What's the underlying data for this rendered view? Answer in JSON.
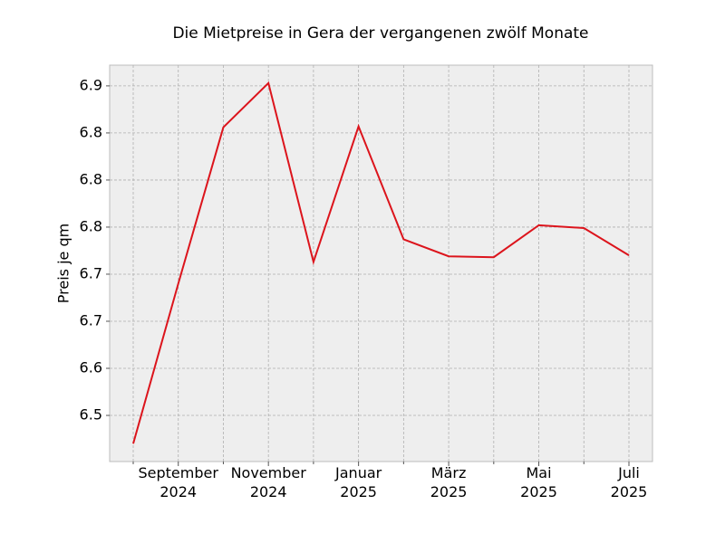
{
  "chart_data": {
    "type": "line",
    "title": "Die Mietpreise in Gera der vergangenen zwölf Monate",
    "y_label": "Preis je qm",
    "categories": [
      null,
      "September 2024",
      null,
      "November 2024",
      null,
      "Januar 2025",
      null,
      "März 2025",
      null,
      "Mai 2025",
      null,
      "Juli 2025"
    ],
    "series": [
      {
        "name": "Preis je qm",
        "color": "#dc141c",
        "values": [
          6.52,
          6.69,
          6.856,
          6.903,
          6.713,
          6.857,
          6.737,
          6.719,
          6.718,
          6.752,
          6.749,
          6.72
        ]
      }
    ],
    "ylim": [
      6.501,
      6.922
    ],
    "yticks": [
      {
        "value": 6.55,
        "label": "6.5"
      },
      {
        "value": 6.6,
        "label": "6.6"
      },
      {
        "value": 6.65,
        "label": "6.7"
      },
      {
        "value": 6.7,
        "label": "6.7"
      },
      {
        "value": 6.75,
        "label": "6.8"
      },
      {
        "value": 6.8,
        "label": "6.8"
      },
      {
        "value": 6.85,
        "label": "6.8"
      },
      {
        "value": 6.9,
        "label": "6.9"
      }
    ],
    "grid": true
  }
}
